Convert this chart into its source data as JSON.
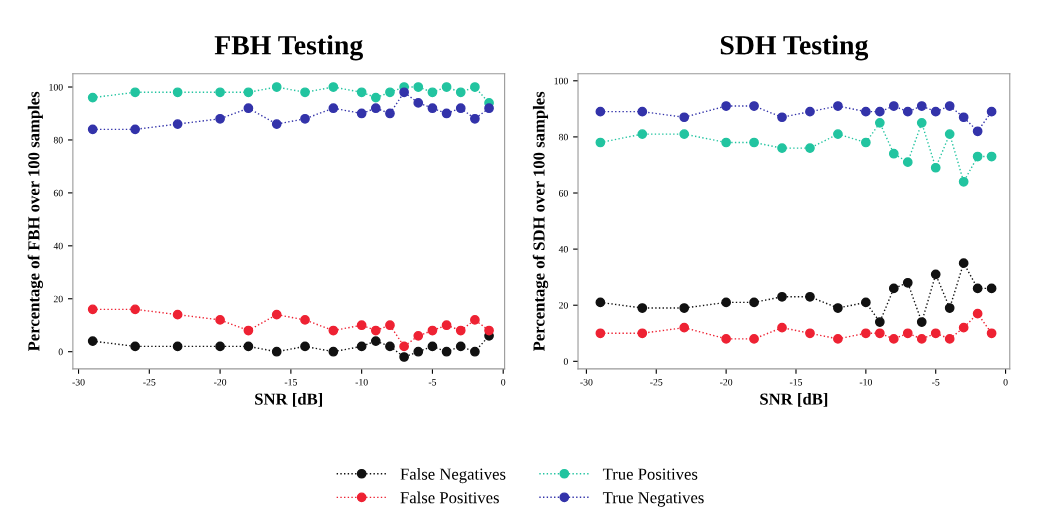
{
  "chart_data": [
    {
      "type": "line",
      "title": "FBH Testing",
      "xlabel": "SNR [dB]",
      "ylabel": "Percentage of FBH over 100 samples",
      "x": [
        -29,
        -26,
        -23,
        -20,
        -18,
        -16,
        -14,
        -12,
        -10,
        -9,
        -8,
        -7,
        -6,
        -5,
        -4,
        -3,
        -2,
        -1
      ],
      "xlim": [
        -30.4,
        0.1
      ],
      "xticks": [
        -30,
        -25,
        -20,
        -15,
        -10,
        -5,
        0
      ],
      "ylim": [
        -6.5,
        105
      ],
      "yticks": [
        0,
        20,
        40,
        60,
        80,
        100
      ],
      "marker": "circle",
      "line_style": "dotted",
      "grid": false,
      "legend": "bottom",
      "series": [
        {
          "name": "False Negatives",
          "color": "#111111",
          "values": [
            4,
            2,
            2,
            2,
            2,
            0,
            2,
            0,
            2,
            4,
            2,
            -2,
            0,
            2,
            0,
            2,
            0,
            6
          ]
        },
        {
          "name": "False Positives",
          "color": "#ee2233",
          "values": [
            16,
            16,
            14,
            12,
            8,
            14,
            12,
            8,
            10,
            8,
            10,
            2,
            6,
            8,
            10,
            8,
            12,
            8
          ]
        },
        {
          "name": "True Positives",
          "color": "#22c4a0",
          "values": [
            96,
            98,
            98,
            98,
            98,
            100,
            98,
            100,
            98,
            96,
            98,
            100,
            100,
            98,
            100,
            98,
            100,
            94
          ]
        },
        {
          "name": "True Negatives",
          "color": "#3333aa",
          "values": [
            84,
            84,
            86,
            88,
            92,
            86,
            88,
            92,
            90,
            92,
            90,
            98,
            94,
            92,
            90,
            92,
            88,
            92
          ]
        }
      ]
    },
    {
      "type": "line",
      "title": "SDH Testing",
      "xlabel": "SNR [dB]",
      "ylabel": "Percentage of SDH over 100 samples",
      "x": [
        -29,
        -26,
        -23,
        -20,
        -18,
        -16,
        -14,
        -12,
        -10,
        -9,
        -8,
        -7,
        -6,
        -5,
        -4,
        -3,
        -2,
        -1
      ],
      "xlim": [
        -30.6,
        0.3
      ],
      "xticks": [
        -30,
        -25,
        -20,
        -15,
        -10,
        -5,
        0
      ],
      "ylim": [
        -2.7,
        102.5
      ],
      "yticks": [
        0,
        20,
        40,
        60,
        80,
        100
      ],
      "marker": "circle",
      "line_style": "dotted",
      "grid": false,
      "series": [
        {
          "color": "#111111",
          "values": [
            21,
            19,
            19,
            21,
            21,
            23,
            23,
            19,
            21,
            14,
            26,
            28,
            14,
            31,
            19,
            35,
            26,
            26
          ]
        },
        {
          "color": "#ee2233",
          "values": [
            10,
            10,
            12,
            8,
            8,
            12,
            10,
            8,
            10,
            10,
            8,
            10,
            8,
            10,
            8,
            12,
            17,
            10
          ]
        },
        {
          "color": "#22c4a0",
          "values": [
            78,
            81,
            81,
            78,
            78,
            76,
            76,
            81,
            78,
            85,
            74,
            71,
            85,
            69,
            81,
            64,
            73,
            73
          ]
        },
        {
          "color": "#3333aa",
          "values": [
            89,
            89,
            87,
            91,
            91,
            87,
            89,
            91,
            89,
            89,
            91,
            89,
            91,
            89,
            91,
            87,
            82,
            89
          ]
        }
      ]
    }
  ]
}
